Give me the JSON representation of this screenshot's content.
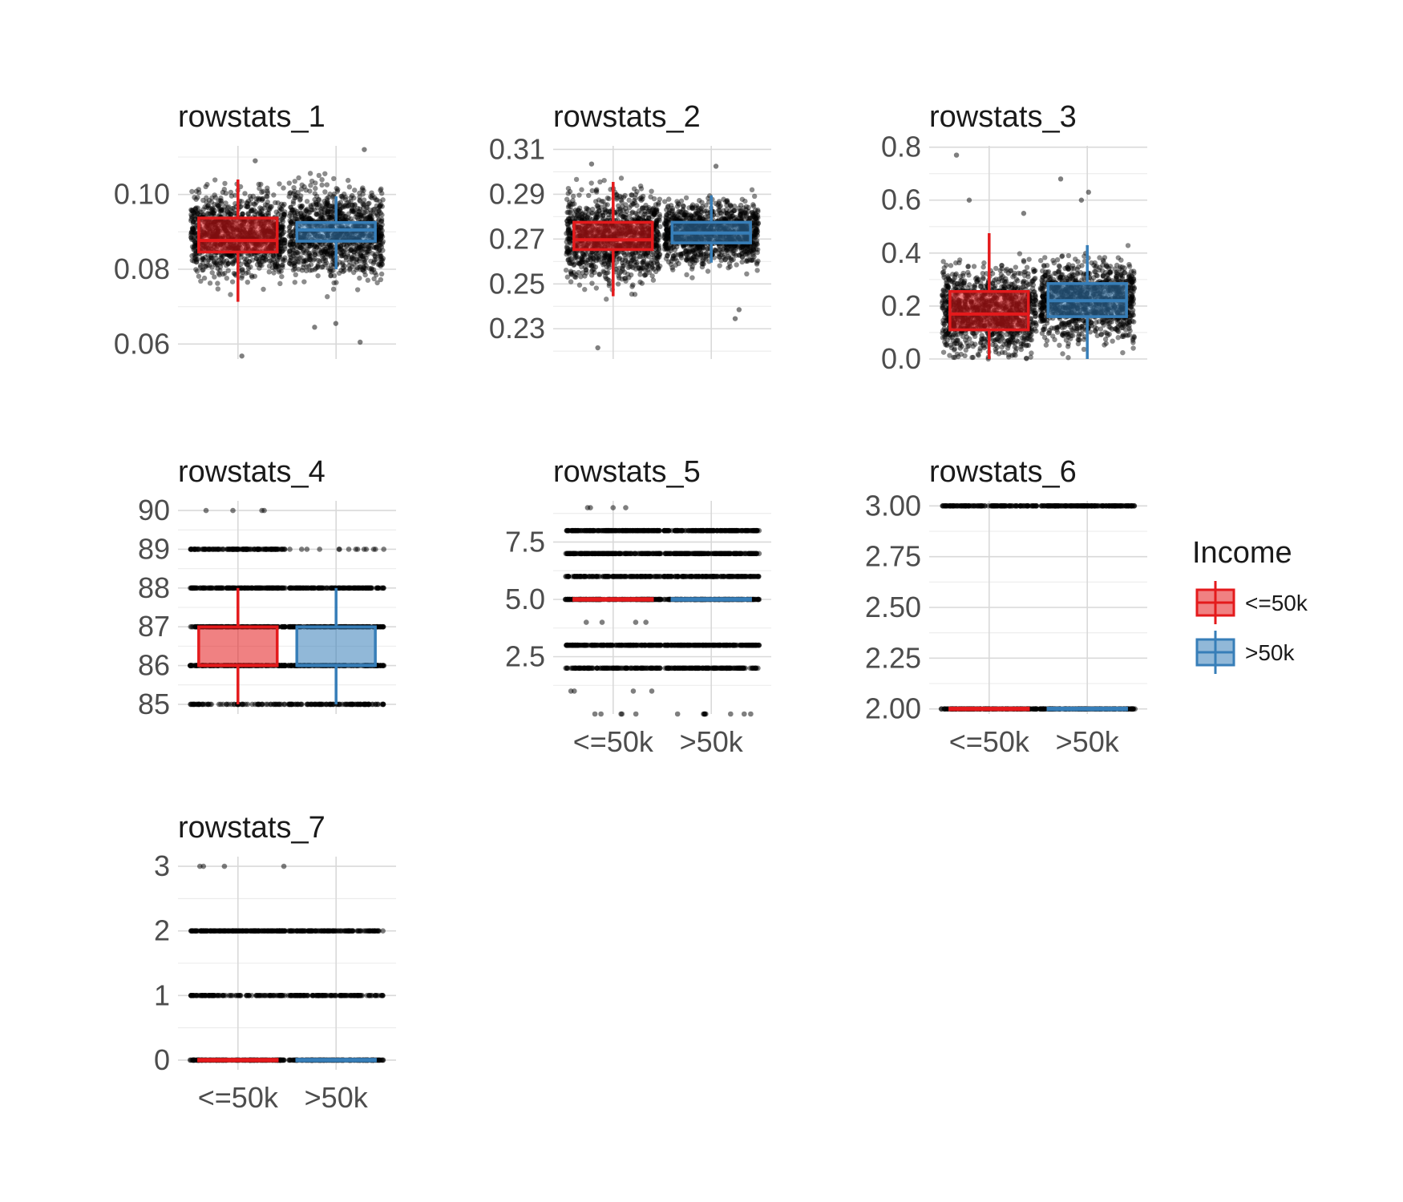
{
  "figure": {
    "legend": {
      "title": "Income",
      "position": "right",
      "items": [
        {
          "label": "<=50k",
          "color": "#e41a1c"
        },
        {
          "label": ">50k",
          "color": "#377eb8"
        }
      ]
    }
  },
  "chart_data": [
    {
      "type": "boxplot",
      "title": "rowstats_1",
      "categories": [
        "<=50k",
        ">50k"
      ],
      "ylim": [
        0.056,
        0.113
      ],
      "yticks": [
        0.06,
        0.08,
        0.1
      ],
      "ytick_labels": [
        "0.06",
        "0.08",
        "0.10"
      ],
      "x_tick_labels_shown": false,
      "grid": true,
      "jitter": "continuous",
      "series": [
        {
          "name": "<=50k",
          "q1": 0.0846,
          "median": 0.0877,
          "q3": 0.0937,
          "whisker_low": 0.0713,
          "whisker_high": 0.104,
          "points_range": [
            0.064,
            0.104
          ],
          "outliers": [
            0.109,
            0.0568
          ]
        },
        {
          "name": ">50k",
          "q1": 0.0875,
          "median": 0.0905,
          "q3": 0.0925,
          "whisker_low": 0.08,
          "whisker_high": 0.0995,
          "points_range": [
            0.0665,
            0.108
          ],
          "outliers": [
            0.112,
            0.0605,
            0.0645,
            0.0655
          ]
        }
      ]
    },
    {
      "type": "boxplot",
      "title": "rowstats_2",
      "categories": [
        "<=50k",
        ">50k"
      ],
      "ylim": [
        0.2165,
        0.3116
      ],
      "yticks": [
        0.23,
        0.25,
        0.27,
        0.29,
        0.31
      ],
      "ytick_labels": [
        "0.23",
        "0.25",
        "0.27",
        "0.29",
        "0.31"
      ],
      "x_tick_labels_shown": false,
      "grid": true,
      "jitter": "continuous",
      "series": [
        {
          "name": "<=50k",
          "q1": 0.2653,
          "median": 0.2697,
          "q3": 0.2775,
          "whisker_low": 0.2445,
          "whisker_high": 0.2955,
          "points_range": [
            0.2295,
            0.2975
          ],
          "outliers": [
            0.3035,
            0.2215
          ]
        },
        {
          "name": ">50k",
          "q1": 0.2683,
          "median": 0.2727,
          "q3": 0.2775,
          "whisker_low": 0.2595,
          "whisker_high": 0.2895,
          "points_range": [
            0.2485,
            0.2995
          ],
          "outliers": [
            0.3025,
            0.2345,
            0.2385
          ]
        }
      ]
    },
    {
      "type": "boxplot",
      "title": "rowstats_3",
      "categories": [
        "<=50k",
        ">50k"
      ],
      "ylim": [
        0.0,
        0.805
      ],
      "yticks": [
        0.0,
        0.2,
        0.4,
        0.6,
        0.8
      ],
      "ytick_labels": [
        "0.0",
        "0.2",
        "0.4",
        "0.6",
        "0.8"
      ],
      "x_tick_labels_shown": false,
      "grid": true,
      "jitter": "continuous",
      "series": [
        {
          "name": "<=50k",
          "q1": 0.11,
          "median": 0.17,
          "q3": 0.255,
          "whisker_low": 0.0,
          "whisker_high": 0.475,
          "points_range": [
            0.0,
            0.5
          ],
          "outliers": [
            0.77,
            0.6,
            0.55
          ]
        },
        {
          "name": ">50k",
          "q1": 0.16,
          "median": 0.22,
          "q3": 0.285,
          "whisker_low": 0.0,
          "whisker_high": 0.43,
          "points_range": [
            0.0,
            0.55
          ],
          "outliers": [
            0.68,
            0.63,
            0.6
          ]
        }
      ]
    },
    {
      "type": "boxplot",
      "title": "rowstats_4",
      "categories": [
        "<=50k",
        ">50k"
      ],
      "ylim": [
        84.75,
        90.25
      ],
      "yticks": [
        85,
        86,
        87,
        88,
        89,
        90
      ],
      "ytick_labels": [
        "85",
        "86",
        "87",
        "88",
        "89",
        "90"
      ],
      "x_tick_labels_shown": false,
      "grid": true,
      "jitter": "discrete",
      "series": [
        {
          "name": "<=50k",
          "q1": 86,
          "median": 86,
          "q3": 87,
          "whisker_low": 85,
          "whisker_high": 88,
          "levels": [
            {
              "y": 85,
              "density": 0.4
            },
            {
              "y": 86,
              "density": 1
            },
            {
              "y": 87,
              "density": 1
            },
            {
              "y": 88,
              "density": 1
            },
            {
              "y": 89,
              "density": 0.8
            },
            {
              "y": 90,
              "density": 0.02
            }
          ]
        },
        {
          "name": ">50k",
          "q1": 86,
          "median": 86,
          "q3": 87,
          "whisker_low": 85,
          "whisker_high": 88,
          "levels": [
            {
              "y": 85,
              "density": 0.6
            },
            {
              "y": 86,
              "density": 1
            },
            {
              "y": 87,
              "density": 1
            },
            {
              "y": 88,
              "density": 0.9
            },
            {
              "y": 89,
              "density": 0.08
            }
          ]
        }
      ]
    },
    {
      "type": "boxplot",
      "title": "rowstats_5",
      "categories": [
        "<=50k",
        ">50k"
      ],
      "ylim": [
        0.0,
        9.3
      ],
      "yticks": [
        2.5,
        5.0,
        7.5
      ],
      "ytick_labels": [
        "2.5",
        "5.0",
        "7.5"
      ],
      "x_tick_labels_shown": true,
      "grid": true,
      "jitter": "discrete",
      "series": [
        {
          "name": "<=50k",
          "q1": 5,
          "median": 5,
          "q3": 5,
          "whisker_low": 5,
          "whisker_high": 5,
          "levels": [
            {
              "y": 0,
              "density": 0.03
            },
            {
              "y": 1,
              "density": 0.02
            },
            {
              "y": 2,
              "density": 0.75
            },
            {
              "y": 3,
              "density": 1
            },
            {
              "y": 4,
              "density": 0.02
            },
            {
              "y": 5,
              "density": 1
            },
            {
              "y": 6,
              "density": 0.8
            },
            {
              "y": 7,
              "density": 1
            },
            {
              "y": 8,
              "density": 1
            },
            {
              "y": 9,
              "density": 0.02
            }
          ]
        },
        {
          "name": ">50k",
          "q1": 5,
          "median": 5,
          "q3": 5,
          "whisker_low": 5,
          "whisker_high": 5,
          "levels": [
            {
              "y": 0,
              "density": 0.05
            },
            {
              "y": 2,
              "density": 0.9
            },
            {
              "y": 3,
              "density": 1
            },
            {
              "y": 5,
              "density": 1
            },
            {
              "y": 6,
              "density": 0.9
            },
            {
              "y": 7,
              "density": 1
            },
            {
              "y": 8,
              "density": 1
            }
          ]
        }
      ]
    },
    {
      "type": "boxplot",
      "title": "rowstats_6",
      "categories": [
        "<=50k",
        ">50k"
      ],
      "ylim": [
        1.975,
        3.025
      ],
      "yticks": [
        2.0,
        2.25,
        2.5,
        2.75,
        3.0
      ],
      "ytick_labels": [
        "2.00",
        "2.25",
        "2.50",
        "2.75",
        "3.00"
      ],
      "x_tick_labels_shown": true,
      "grid": true,
      "jitter": "discrete",
      "series": [
        {
          "name": "<=50k",
          "q1": 2,
          "median": 2,
          "q3": 2,
          "whisker_low": 2,
          "whisker_high": 2,
          "levels": [
            {
              "y": 2,
              "density": 1
            },
            {
              "y": 3,
              "density": 0.8
            }
          ]
        },
        {
          "name": ">50k",
          "q1": 2,
          "median": 2,
          "q3": 2,
          "whisker_low": 2,
          "whisker_high": 2,
          "levels": [
            {
              "y": 2,
              "density": 1
            },
            {
              "y": 3,
              "density": 1
            }
          ]
        }
      ]
    },
    {
      "type": "boxplot",
      "title": "rowstats_7",
      "categories": [
        "<=50k",
        ">50k"
      ],
      "ylim": [
        -0.15,
        3.15
      ],
      "yticks": [
        0,
        1,
        2,
        3
      ],
      "ytick_labels": [
        "0",
        "1",
        "2",
        "3"
      ],
      "x_tick_labels_shown": true,
      "grid": true,
      "jitter": "discrete",
      "series": [
        {
          "name": "<=50k",
          "q1": 0,
          "median": 0,
          "q3": 0,
          "whisker_low": 0,
          "whisker_high": 0,
          "levels": [
            {
              "y": 0,
              "density": 1
            },
            {
              "y": 1,
              "density": 0.6
            },
            {
              "y": 2,
              "density": 1
            },
            {
              "y": 3,
              "density": 0.02
            }
          ]
        },
        {
          "name": ">50k",
          "q1": 0,
          "median": 0,
          "q3": 0,
          "whisker_low": 0,
          "whisker_high": 0,
          "levels": [
            {
              "y": 0,
              "density": 1
            },
            {
              "y": 1,
              "density": 0.7
            },
            {
              "y": 2,
              "density": 0.7
            }
          ]
        }
      ]
    }
  ]
}
